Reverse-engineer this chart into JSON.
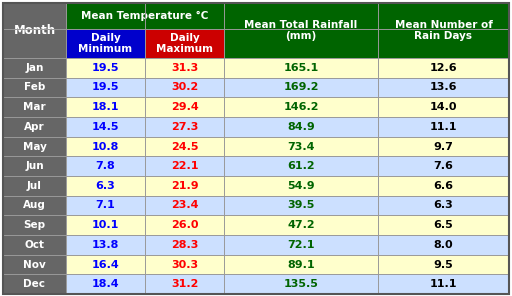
{
  "months": [
    "Jan",
    "Feb",
    "Mar",
    "Apr",
    "May",
    "Jun",
    "Jul",
    "Aug",
    "Sep",
    "Oct",
    "Nov",
    "Dec"
  ],
  "daily_min": [
    19.5,
    19.5,
    18.1,
    14.5,
    10.8,
    7.8,
    6.3,
    7.1,
    10.1,
    13.8,
    16.4,
    18.4
  ],
  "daily_max": [
    31.3,
    30.2,
    29.4,
    27.3,
    24.5,
    22.1,
    21.9,
    23.4,
    26.0,
    28.3,
    30.3,
    31.2
  ],
  "rainfall": [
    165.1,
    169.2,
    146.2,
    84.9,
    73.4,
    61.2,
    54.9,
    39.5,
    47.2,
    72.1,
    89.1,
    135.5
  ],
  "rain_days": [
    12.6,
    13.6,
    14.0,
    11.1,
    9.7,
    7.6,
    6.6,
    6.3,
    6.5,
    8.0,
    9.5,
    11.1
  ],
  "header_bg": "#006400",
  "min_header_bg": "#0000cc",
  "max_header_bg": "#cc0000",
  "month_col_bg": "#666666",
  "row_bg_odd": "#ffffcc",
  "row_bg_even": "#cce0ff",
  "month_text_color": "#ffffff",
  "header_text_color": "#ffffff",
  "min_text_color": "#0000ff",
  "max_text_color": "#ff0000",
  "rainfall_text_color": "#006400",
  "rain_days_text_color": "#000000",
  "grid_color": "#999999",
  "outer_border_color": "#555555"
}
